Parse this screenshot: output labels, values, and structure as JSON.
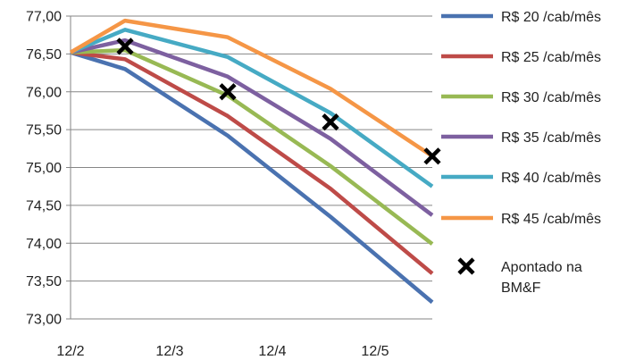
{
  "chart_data": {
    "type": "line",
    "x": [
      "12/2",
      "12/2.5",
      "12/3.5",
      "12/4.5",
      "12/5.5"
    ],
    "x_tick_labels": [
      "12/2",
      "12/3",
      "12/4",
      "12/5"
    ],
    "ylim": [
      73.0,
      77.0
    ],
    "y_tick_labels": [
      "73,00",
      "73,50",
      "74,00",
      "74,50",
      "75,00",
      "75,50",
      "76,00",
      "76,50",
      "77,00"
    ],
    "grid": "horizontal-major",
    "legend_position": "right",
    "series": [
      {
        "name": "R$ 20 /cab/mês",
        "color": "#4a72b0",
        "values": [
          76.52,
          76.3,
          75.42,
          74.35,
          73.22
        ]
      },
      {
        "name": "R$ 25 /cab/mês",
        "color": "#be4b48",
        "values": [
          76.52,
          76.43,
          75.68,
          74.72,
          73.6
        ]
      },
      {
        "name": "R$ 30 /cab/mês",
        "color": "#98b954",
        "values": [
          76.52,
          76.55,
          75.95,
          75.02,
          73.99
        ]
      },
      {
        "name": "R$ 35 /cab/mês",
        "color": "#7d60a0",
        "values": [
          76.52,
          76.68,
          76.2,
          75.38,
          74.37
        ]
      },
      {
        "name": "R$ 40 /cab/mês",
        "color": "#46aac4",
        "values": [
          76.52,
          76.82,
          76.46,
          75.72,
          74.75
        ]
      },
      {
        "name": "R$ 45 /cab/mês",
        "color": "#f59646",
        "values": [
          76.52,
          76.94,
          76.72,
          76.04,
          75.15
        ]
      }
    ],
    "markers": {
      "name": "Apontado na BM&F",
      "legend_lines": [
        "Apontado na",
        "BM&F"
      ],
      "symbol": "x",
      "color": "#000000",
      "points": [
        {
          "x": "12/2.5",
          "y": 76.6
        },
        {
          "x": "12/3.5",
          "y": 76.0
        },
        {
          "x": "12/4.5",
          "y": 75.6
        },
        {
          "x": "12/5.5",
          "y": 75.15
        }
      ]
    }
  }
}
